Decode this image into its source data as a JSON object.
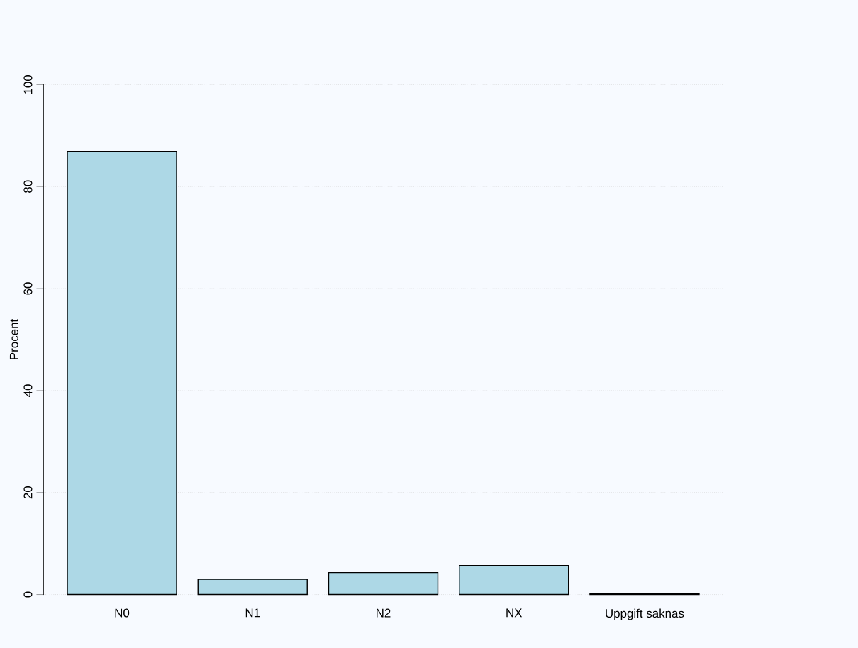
{
  "chart_data": {
    "type": "bar",
    "ylabel": "Procent",
    "categories": [
      "N0",
      "N1",
      "N2",
      "NX",
      "Uppgift saknas"
    ],
    "values": [
      86.9,
      3.0,
      4.3,
      5.7,
      0.2
    ],
    "color": "#add8e6",
    "ylim": [
      0,
      100
    ],
    "yticks": [
      0,
      20,
      40,
      60,
      80,
      100
    ],
    "grid": "y"
  }
}
